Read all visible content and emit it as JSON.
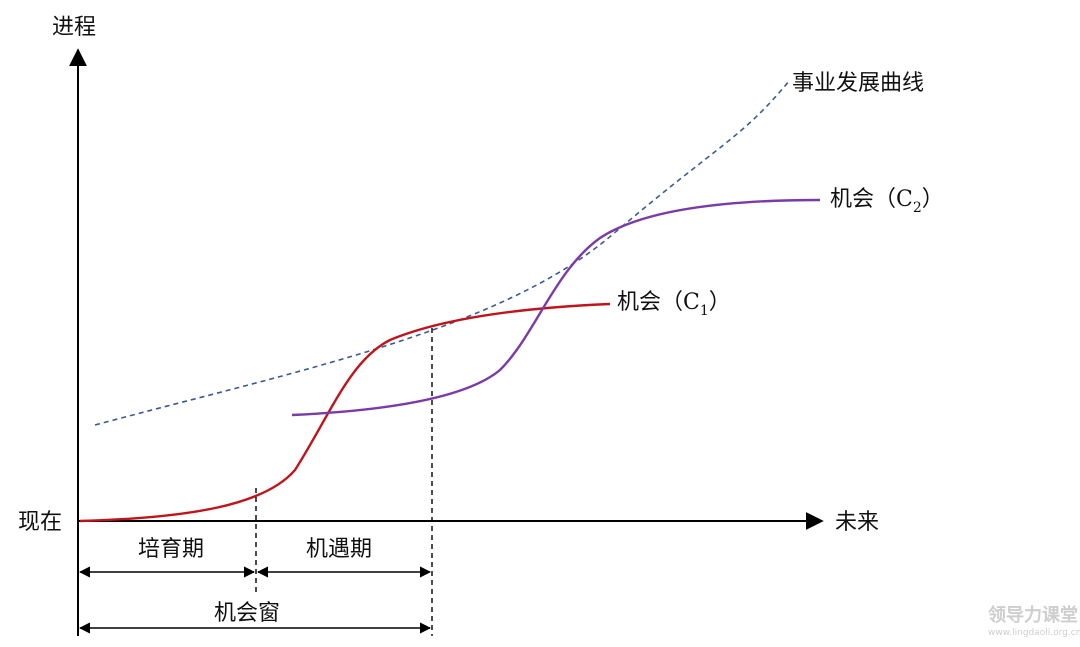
{
  "axes": {
    "y_label": "进程",
    "origin_label": "现在",
    "x_label": "未来"
  },
  "curves": {
    "career": {
      "label": "事业发展曲线",
      "color": "#3a5a96"
    },
    "c1": {
      "prefix": "机会（",
      "letter": "C",
      "sub": "1",
      "suffix": "）",
      "color": "#c0141a"
    },
    "c2": {
      "prefix": "机会（",
      "letter": "C",
      "sub": "2",
      "suffix": "）",
      "color": "#7a3aa8"
    }
  },
  "phases": {
    "incubation": "培育期",
    "opportunity": "机遇期",
    "window": "机会窗"
  },
  "watermark": {
    "title": "领导力课堂",
    "url": "www.lingdaoli.org.cn"
  }
}
